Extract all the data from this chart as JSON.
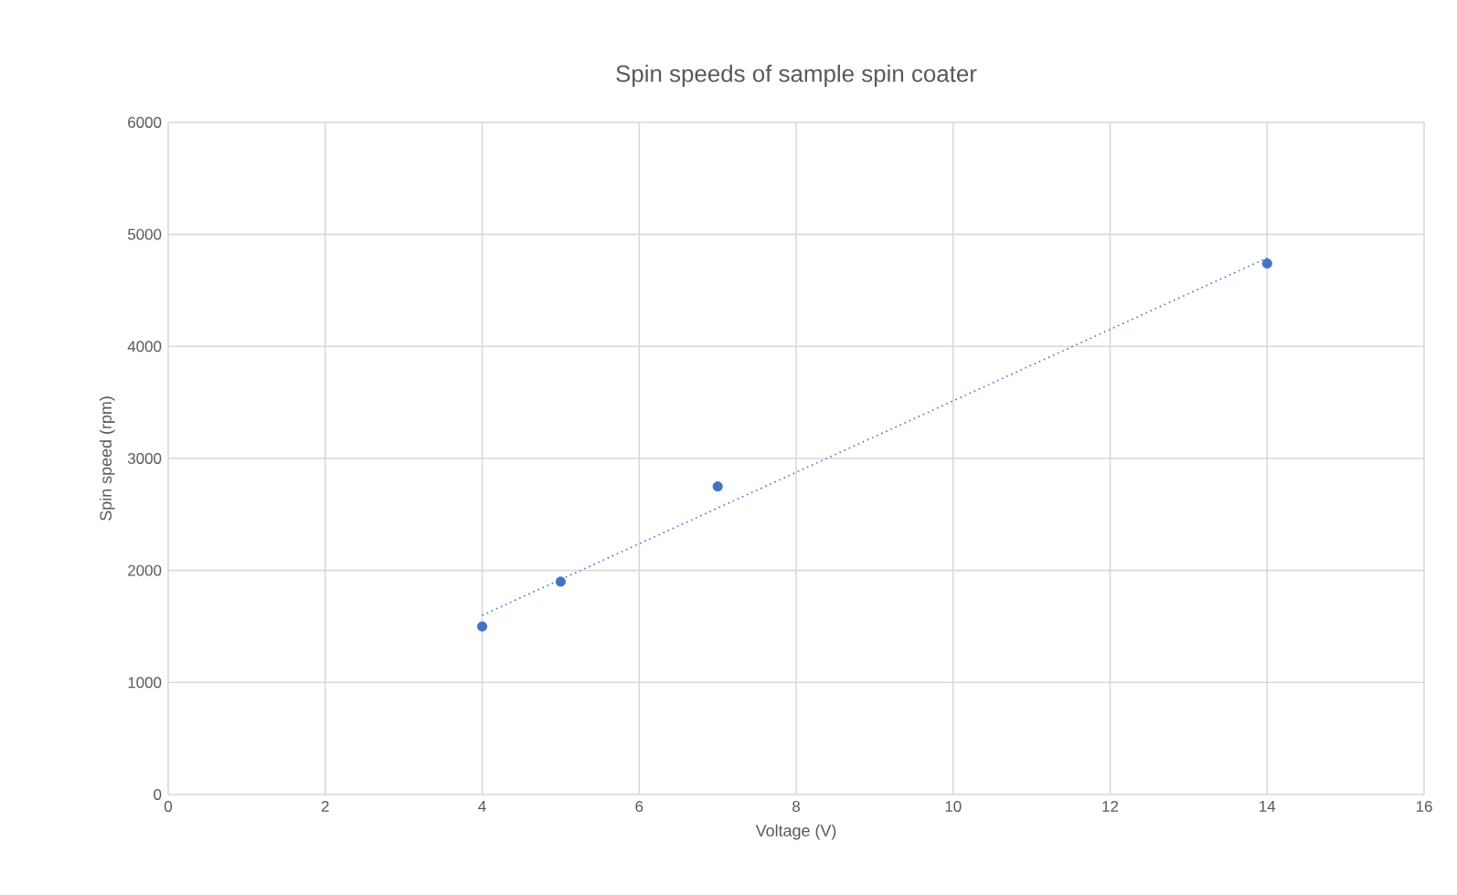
{
  "chart_data": {
    "type": "scatter",
    "title": "Spin speeds of sample spin coater",
    "xlabel": "Voltage (V)",
    "ylabel": "Spin speed (rpm)",
    "xlim": [
      0,
      16
    ],
    "xticks": [
      0,
      2,
      4,
      6,
      8,
      10,
      12,
      14,
      16
    ],
    "ylim": [
      0,
      6000
    ],
    "yticks": [
      0,
      1000,
      2000,
      3000,
      4000,
      5000,
      6000
    ],
    "grid": true,
    "series": [
      {
        "type": "scatter",
        "color": "#4472c4",
        "marker": "circle",
        "x": [
          4,
          5,
          7,
          14
        ],
        "values": [
          1500,
          1900,
          2750,
          4740
        ]
      },
      {
        "type": "line",
        "color": "#4472c4",
        "line_style": "dotted",
        "marker": "none",
        "x": [
          4,
          14
        ],
        "values": [
          1600,
          4790
        ]
      }
    ]
  }
}
